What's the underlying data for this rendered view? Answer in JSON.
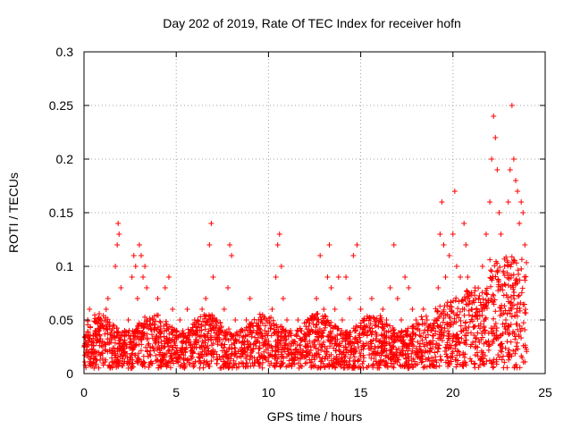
{
  "chart_data": {
    "type": "scatter",
    "title": "Day 202 of 2019, Rate Of TEC Index for receiver hofn",
    "xlabel": "GPS time / hours",
    "ylabel": "ROTI / TECUs",
    "xlim": [
      0,
      25
    ],
    "ylim": [
      0,
      0.3
    ],
    "xticks": [
      0,
      5,
      10,
      15,
      20,
      25
    ],
    "xtick_labels": [
      "0",
      "5",
      "10",
      "15",
      "20",
      "25"
    ],
    "yticks": [
      0,
      0.05,
      0.1,
      0.15,
      0.2,
      0.25,
      0.3
    ],
    "ytick_labels": [
      "0",
      "0.05",
      "0.1",
      "0.15",
      "0.2",
      "0.25",
      "0.3"
    ],
    "grid": true,
    "marker": "+",
    "color": "#ff0000",
    "series": [
      {
        "name": "ROTI",
        "points": [
          [
            0.1,
            0.02
          ],
          [
            0.2,
            0.05
          ],
          [
            0.3,
            0.06
          ],
          [
            0.4,
            0.03
          ],
          [
            0.5,
            0.01
          ],
          [
            0.6,
            0.04
          ],
          [
            0.8,
            0.05
          ],
          [
            1.0,
            0.03
          ],
          [
            1.2,
            0.06
          ],
          [
            1.3,
            0.07
          ],
          [
            1.5,
            0.04
          ],
          [
            1.7,
            0.1
          ],
          [
            1.8,
            0.12
          ],
          [
            1.85,
            0.14
          ],
          [
            1.9,
            0.13
          ],
          [
            2.0,
            0.08
          ],
          [
            2.2,
            0.04
          ],
          [
            2.4,
            0.05
          ],
          [
            2.6,
            0.09
          ],
          [
            2.7,
            0.11
          ],
          [
            2.8,
            0.1
          ],
          [
            2.9,
            0.07
          ],
          [
            3.0,
            0.12
          ],
          [
            3.1,
            0.11
          ],
          [
            3.2,
            0.09
          ],
          [
            3.3,
            0.1
          ],
          [
            3.4,
            0.08
          ],
          [
            3.6,
            0.05
          ],
          [
            3.8,
            0.04
          ],
          [
            4.0,
            0.07
          ],
          [
            4.2,
            0.03
          ],
          [
            4.4,
            0.08
          ],
          [
            4.6,
            0.09
          ],
          [
            4.8,
            0.06
          ],
          [
            5.0,
            0.04
          ],
          [
            5.2,
            0.05
          ],
          [
            5.4,
            0.03
          ],
          [
            5.6,
            0.06
          ],
          [
            5.8,
            0.04
          ],
          [
            6.0,
            0.05
          ],
          [
            6.2,
            0.03
          ],
          [
            6.4,
            0.06
          ],
          [
            6.6,
            0.07
          ],
          [
            6.8,
            0.12
          ],
          [
            6.9,
            0.14
          ],
          [
            7.0,
            0.09
          ],
          [
            7.2,
            0.05
          ],
          [
            7.4,
            0.04
          ],
          [
            7.6,
            0.06
          ],
          [
            7.8,
            0.08
          ],
          [
            7.9,
            0.12
          ],
          [
            8.0,
            0.11
          ],
          [
            8.2,
            0.05
          ],
          [
            8.4,
            0.03
          ],
          [
            8.6,
            0.04
          ],
          [
            8.8,
            0.05
          ],
          [
            9.0,
            0.07
          ],
          [
            9.2,
            0.04
          ],
          [
            9.4,
            0.03
          ],
          [
            9.6,
            0.05
          ],
          [
            9.8,
            0.04
          ],
          [
            10.0,
            0.03
          ],
          [
            10.2,
            0.06
          ],
          [
            10.4,
            0.09
          ],
          [
            10.5,
            0.12
          ],
          [
            10.6,
            0.13
          ],
          [
            10.7,
            0.1
          ],
          [
            10.8,
            0.07
          ],
          [
            11.0,
            0.05
          ],
          [
            11.2,
            0.04
          ],
          [
            11.4,
            0.03
          ],
          [
            11.6,
            0.05
          ],
          [
            11.8,
            0.04
          ],
          [
            12.0,
            0.03
          ],
          [
            12.2,
            0.04
          ],
          [
            12.4,
            0.05
          ],
          [
            12.6,
            0.07
          ],
          [
            12.8,
            0.11
          ],
          [
            13.0,
            0.06
          ],
          [
            13.2,
            0.09
          ],
          [
            13.3,
            0.12
          ],
          [
            13.4,
            0.08
          ],
          [
            13.6,
            0.06
          ],
          [
            13.8,
            0.09
          ],
          [
            14.0,
            0.05
          ],
          [
            14.2,
            0.09
          ],
          [
            14.4,
            0.07
          ],
          [
            14.6,
            0.11
          ],
          [
            14.8,
            0.12
          ],
          [
            15.0,
            0.06
          ],
          [
            15.2,
            0.05
          ],
          [
            15.4,
            0.04
          ],
          [
            15.6,
            0.07
          ],
          [
            15.8,
            0.05
          ],
          [
            16.0,
            0.03
          ],
          [
            16.2,
            0.06
          ],
          [
            16.4,
            0.05
          ],
          [
            16.6,
            0.08
          ],
          [
            16.8,
            0.12
          ],
          [
            17.0,
            0.07
          ],
          [
            17.2,
            0.05
          ],
          [
            17.4,
            0.09
          ],
          [
            17.6,
            0.08
          ],
          [
            17.8,
            0.06
          ],
          [
            18.0,
            0.05
          ],
          [
            18.2,
            0.04
          ],
          [
            18.4,
            0.06
          ],
          [
            18.6,
            0.05
          ],
          [
            18.8,
            0.04
          ],
          [
            19.0,
            0.05
          ],
          [
            19.2,
            0.08
          ],
          [
            19.3,
            0.13
          ],
          [
            19.4,
            0.16
          ],
          [
            19.5,
            0.12
          ],
          [
            19.6,
            0.09
          ],
          [
            19.8,
            0.11
          ],
          [
            20.0,
            0.13
          ],
          [
            20.1,
            0.17
          ],
          [
            20.2,
            0.1
          ],
          [
            20.4,
            0.09
          ],
          [
            20.6,
            0.14
          ],
          [
            20.7,
            0.12
          ],
          [
            20.8,
            0.09
          ],
          [
            21.0,
            0.06
          ],
          [
            21.2,
            0.08
          ],
          [
            21.4,
            0.07
          ],
          [
            21.6,
            0.1
          ],
          [
            21.8,
            0.13
          ],
          [
            22.0,
            0.16
          ],
          [
            22.1,
            0.2
          ],
          [
            22.2,
            0.24
          ],
          [
            22.3,
            0.22
          ],
          [
            22.4,
            0.19
          ],
          [
            22.5,
            0.15
          ],
          [
            22.6,
            0.13
          ],
          [
            22.8,
            0.1
          ],
          [
            23.0,
            0.16
          ],
          [
            23.1,
            0.19
          ],
          [
            23.2,
            0.25
          ],
          [
            23.3,
            0.2
          ],
          [
            23.4,
            0.18
          ],
          [
            23.5,
            0.17
          ],
          [
            23.6,
            0.14
          ],
          [
            23.7,
            0.16
          ],
          [
            23.8,
            0.15
          ],
          [
            23.9,
            0.12
          ]
        ]
      }
    ]
  }
}
